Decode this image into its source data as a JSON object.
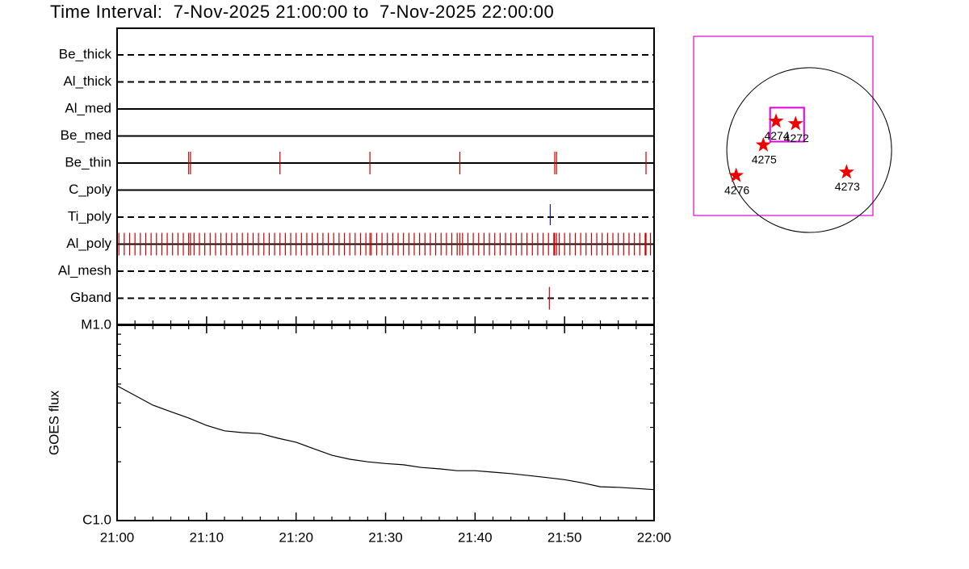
{
  "chart_data": [
    {
      "type": "timeline",
      "title": "Time Interval:  7-Nov-2025 21:00:00 to  7-Nov-2025 22:00:00",
      "xlim": [
        0,
        60
      ],
      "rows": [
        {
          "name": "Be_thick",
          "style": "dashed",
          "color": "#cc0000",
          "values": []
        },
        {
          "name": "Al_thick",
          "style": "dashed",
          "color": "#cc0000",
          "values": []
        },
        {
          "name": "Al_med",
          "style": "solid",
          "color": "#cc0000",
          "values": []
        },
        {
          "name": "Be_med",
          "style": "solid",
          "color": "#cc0000",
          "values": []
        },
        {
          "name": "Be_thin",
          "style": "solid",
          "color": "#cc0000",
          "values": [
            8.0,
            8.2,
            18.2,
            28.25,
            38.3,
            48.9,
            49.1,
            59.1
          ]
        },
        {
          "name": "C_poly",
          "style": "solid",
          "color": "#cc0000",
          "values": []
        },
        {
          "name": "Ti_poly",
          "style": "dashed",
          "color": "#1a1a9a",
          "values": [
            48.4
          ]
        },
        {
          "name": "Al_poly",
          "style": "solid",
          "color": "#cc0000",
          "values": [
            0.2,
            0.8,
            1.4,
            2.0,
            2.6,
            3.2,
            3.8,
            4.4,
            5.0,
            5.6,
            6.2,
            6.8,
            7.4,
            8.0,
            8.2,
            8.6,
            9.2,
            9.8,
            10.4,
            11.0,
            11.6,
            12.2,
            12.8,
            13.4,
            14.0,
            14.6,
            15.2,
            15.8,
            16.4,
            17.0,
            17.6,
            18.2,
            18.8,
            19.4,
            20.0,
            20.6,
            21.2,
            21.8,
            22.4,
            23.0,
            23.6,
            24.2,
            24.8,
            25.4,
            26.0,
            26.6,
            27.2,
            27.8,
            28.25,
            28.4,
            29.0,
            29.6,
            30.2,
            30.8,
            31.4,
            32.0,
            32.6,
            33.2,
            33.8,
            34.4,
            35.0,
            35.6,
            36.2,
            36.8,
            37.4,
            38.0,
            38.3,
            38.6,
            39.2,
            39.8,
            40.4,
            41.0,
            41.6,
            42.2,
            42.8,
            43.4,
            44.0,
            44.6,
            45.2,
            45.8,
            46.4,
            47.0,
            47.6,
            48.2,
            48.8,
            48.9,
            49.1,
            49.4,
            50.0,
            50.6,
            51.2,
            51.8,
            52.4,
            53.0,
            53.6,
            54.2,
            54.8,
            55.4,
            56.0,
            56.6,
            57.2,
            57.8,
            58.4,
            59.0,
            59.1,
            59.6
          ]
        },
        {
          "name": "Al_mesh",
          "style": "dashed",
          "color": "#cc0000",
          "values": []
        },
        {
          "name": "Gband",
          "style": "dashed",
          "color": "#cc0000",
          "values": [
            48.3
          ]
        }
      ]
    },
    {
      "type": "line",
      "ylabel": "GOES flux",
      "log": true,
      "color": "#000000",
      "x": [
        0,
        2,
        4,
        6,
        8,
        10,
        12,
        14,
        16,
        18,
        20,
        22,
        24,
        26,
        28,
        30,
        32,
        34,
        36,
        38,
        40,
        42,
        44,
        46,
        48,
        50,
        52,
        54,
        56,
        58,
        60
      ],
      "values": [
        4.9e-06,
        4.37e-06,
        3.9e-06,
        3.61e-06,
        3.35e-06,
        3.07e-06,
        2.88e-06,
        2.82e-06,
        2.79e-06,
        2.64e-06,
        2.52e-06,
        2.33e-06,
        2.16e-06,
        2.06e-06,
        2e-06,
        1.96e-06,
        1.93e-06,
        1.87e-06,
        1.84e-06,
        1.8e-06,
        1.8e-06,
        1.77e-06,
        1.74e-06,
        1.7e-06,
        1.66e-06,
        1.62e-06,
        1.56e-06,
        1.49e-06,
        1.48e-06,
        1.46e-06,
        1.44e-06
      ],
      "xlim": [
        0,
        60
      ],
      "xticks": [
        {
          "value": 0,
          "label": "21:00"
        },
        {
          "value": 10,
          "label": "21:10"
        },
        {
          "value": 20,
          "label": "21:20"
        },
        {
          "value": 30,
          "label": "21:30"
        },
        {
          "value": 40,
          "label": "21:40"
        },
        {
          "value": 50,
          "label": "21:50"
        },
        {
          "value": 60,
          "label": "22:00"
        }
      ],
      "xminorticks": [
        2,
        4,
        6,
        8,
        12,
        14,
        16,
        18,
        22,
        24,
        26,
        28,
        32,
        34,
        36,
        38,
        42,
        44,
        46,
        48,
        52,
        54,
        56,
        58
      ],
      "ylim": [
        1e-06,
        1e-05
      ],
      "yticks": [
        {
          "value": 1e-06,
          "label": "C1.0"
        },
        {
          "value": 1e-05,
          "label": "M1.0"
        }
      ],
      "yminorticks": [
        2e-06,
        3e-06,
        4e-06,
        5e-06,
        6e-06,
        7e-06,
        8e-06,
        9e-06
      ]
    },
    {
      "type": "scatter",
      "xlim": [
        -1360,
        750
      ],
      "ylim": [
        -770,
        1340
      ],
      "disk_radius": 970,
      "box_x": [
        -460,
        -60
      ],
      "box_y": [
        100,
        500
      ],
      "color": "#ee0000",
      "labels": [
        "4274",
        "4272",
        "4275",
        "4276",
        "4273"
      ],
      "x": [
        -390,
        -160,
        -540,
        -860,
        440
      ],
      "y": [
        340,
        310,
        60,
        -300,
        -260
      ]
    }
  ]
}
